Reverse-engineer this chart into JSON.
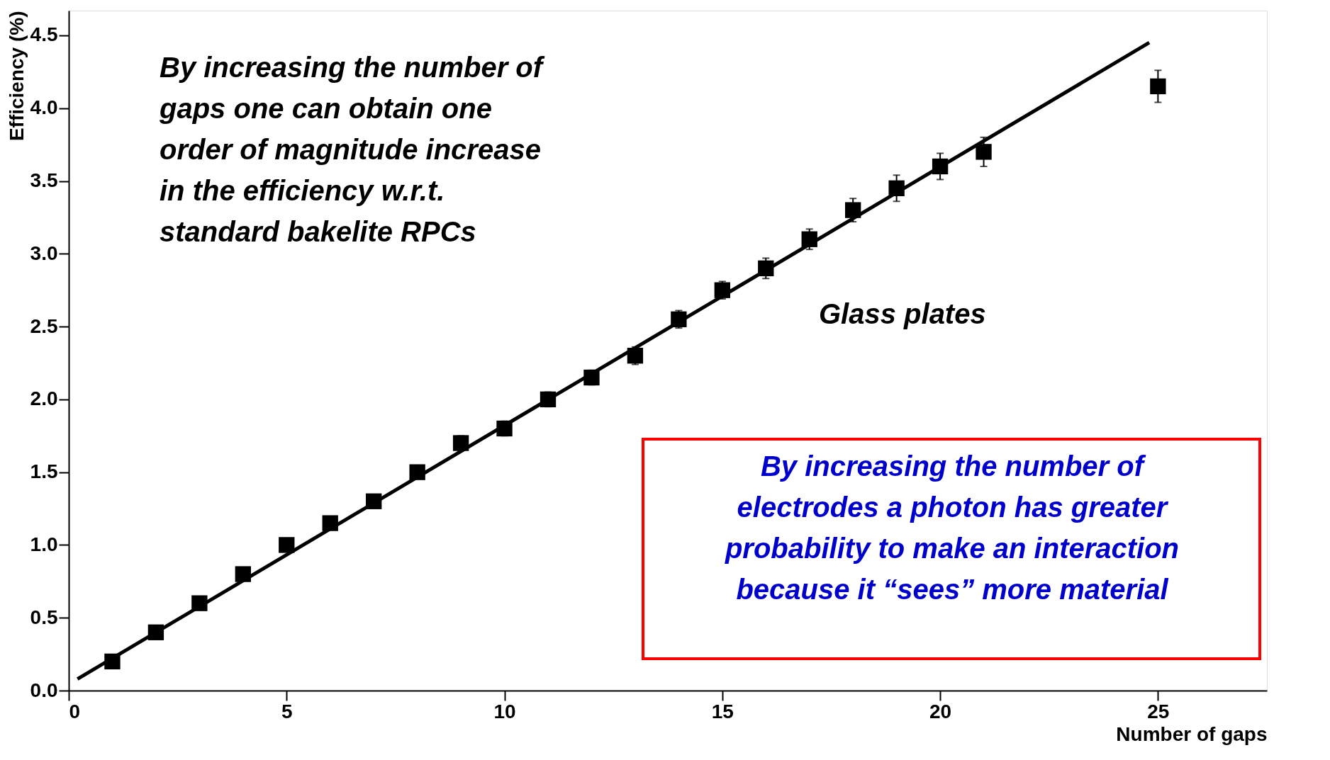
{
  "chart_data": {
    "type": "scatter",
    "xlabel": "Number of gaps",
    "ylabel": "Efficiency (%)",
    "xlim": [
      0,
      27.5
    ],
    "ylim": [
      0,
      4.67
    ],
    "xticks": [
      0,
      5,
      10,
      15,
      20,
      25
    ],
    "yticks": [
      {
        "value": 0,
        "label": "0.0"
      },
      {
        "value": 0.5,
        "label": "0.5"
      },
      {
        "value": 1,
        "label": "1.0"
      },
      {
        "value": 1.5,
        "label": "1.5"
      },
      {
        "value": 2,
        "label": "2.0"
      },
      {
        "value": 2.5,
        "label": "2.5"
      },
      {
        "value": 3,
        "label": "3.0"
      },
      {
        "value": 3.5,
        "label": "3.5"
      },
      {
        "value": 4,
        "label": "4.0"
      },
      {
        "value": 4.5,
        "label": "4.5"
      }
    ],
    "grid": false,
    "series": [
      {
        "marker": "square",
        "color": "#000000",
        "x": [
          1,
          2,
          3,
          4,
          5,
          6,
          7,
          8,
          9,
          10,
          11,
          12,
          13,
          14,
          15,
          16,
          17,
          18,
          19,
          20,
          21,
          25
        ],
        "values": [
          0.2,
          0.4,
          0.6,
          0.8,
          1.0,
          1.15,
          1.3,
          1.5,
          1.7,
          1.8,
          2.0,
          2.15,
          2.3,
          2.55,
          2.75,
          2.9,
          3.1,
          3.3,
          3.45,
          3.6,
          3.7,
          4.15
        ],
        "errors": [
          null,
          null,
          null,
          null,
          null,
          null,
          null,
          null,
          0.05,
          0.05,
          0.05,
          0.05,
          0.06,
          0.06,
          0.06,
          0.07,
          0.07,
          0.08,
          0.09,
          0.09,
          0.1,
          0.11
        ]
      },
      {
        "type": "line",
        "marker": "none",
        "color": "#000000",
        "x": [
          0.2,
          24.8
        ],
        "values": [
          0.08,
          4.45
        ]
      }
    ],
    "annotations": [
      "By increasing the number of\ngaps one can obtain one\norder of magnitude increase\nin the efficiency w.r.t.\nstandard bakelite RPCs",
      "Glass plates",
      "By increasing the number of\nelectrodes a photon has greater\nprobability to make an interaction\nbecause it “sees” more material"
    ]
  }
}
